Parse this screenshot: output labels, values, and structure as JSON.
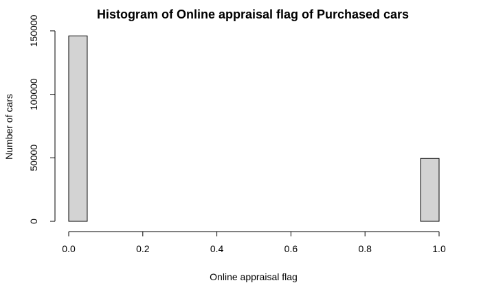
{
  "chart_data": {
    "type": "bar",
    "title": "Histogram of Online appraisal flag of Purchased cars",
    "xlabel": "Online appraisal flag",
    "ylabel": "Number of cars",
    "bins": [
      {
        "x0": 0.0,
        "x1": 0.05,
        "count": 146000
      },
      {
        "x0": 0.05,
        "x1": 0.1,
        "count": 0
      },
      {
        "x0": 0.1,
        "x1": 0.15,
        "count": 0
      },
      {
        "x0": 0.15,
        "x1": 0.2,
        "count": 0
      },
      {
        "x0": 0.2,
        "x1": 0.25,
        "count": 0
      },
      {
        "x0": 0.25,
        "x1": 0.3,
        "count": 0
      },
      {
        "x0": 0.3,
        "x1": 0.35,
        "count": 0
      },
      {
        "x0": 0.35,
        "x1": 0.4,
        "count": 0
      },
      {
        "x0": 0.4,
        "x1": 0.45,
        "count": 0
      },
      {
        "x0": 0.45,
        "x1": 0.5,
        "count": 0
      },
      {
        "x0": 0.5,
        "x1": 0.55,
        "count": 0
      },
      {
        "x0": 0.55,
        "x1": 0.6,
        "count": 0
      },
      {
        "x0": 0.6,
        "x1": 0.65,
        "count": 0
      },
      {
        "x0": 0.65,
        "x1": 0.7,
        "count": 0
      },
      {
        "x0": 0.7,
        "x1": 0.75,
        "count": 0
      },
      {
        "x0": 0.75,
        "x1": 0.8,
        "count": 0
      },
      {
        "x0": 0.8,
        "x1": 0.85,
        "count": 0
      },
      {
        "x0": 0.85,
        "x1": 0.9,
        "count": 0
      },
      {
        "x0": 0.9,
        "x1": 0.95,
        "count": 0
      },
      {
        "x0": 0.95,
        "x1": 1.0,
        "count": 49500
      }
    ],
    "xlim": [
      0,
      1
    ],
    "ylim": [
      0,
      150000
    ],
    "x_ticks": [
      0.0,
      0.2,
      0.4,
      0.6,
      0.8,
      1.0
    ],
    "x_tick_labels": [
      "0.0",
      "0.2",
      "0.4",
      "0.6",
      "0.8",
      "1.0"
    ],
    "y_ticks": [
      0,
      50000,
      100000,
      150000
    ],
    "y_tick_labels": [
      "0",
      "50000",
      "100000",
      "150000"
    ],
    "bar_fill": "#d3d3d3",
    "bar_stroke": "#000000",
    "grid": false,
    "legend": "none"
  }
}
